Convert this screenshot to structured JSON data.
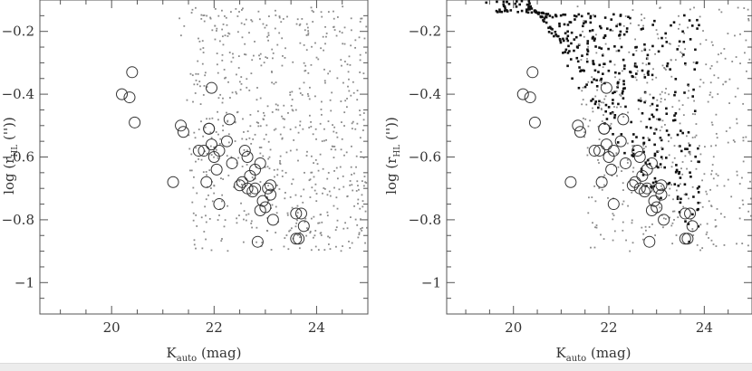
{
  "chart_data": [
    {
      "type": "scatter",
      "title": "",
      "xlabel": "K",
      "xlabel_sub": "auto",
      "xlabel_unit": " (mag)",
      "ylabel": "log (r",
      "ylabel_sub": "HL",
      "ylabel_unit": " ('')) ",
      "xlim": [
        18.6,
        25.0
      ],
      "ylim": [
        -1.1,
        -0.1
      ],
      "xticks": [
        20,
        22,
        24
      ],
      "xticklabels": [
        "20",
        "22",
        "24"
      ],
      "yticks": [
        -0.2,
        -0.4,
        -0.6,
        -0.8,
        -1.0
      ],
      "yticklabels": [
        "−0.2",
        "−0.4",
        "−0.6",
        "−0.8",
        "−1"
      ],
      "grid": false,
      "series": [
        {
          "marker": "open-circle",
          "color": "#333333",
          "x": [
            20.4,
            20.2,
            20.35,
            20.45,
            21.2,
            21.35,
            21.4,
            21.95,
            21.8,
            21.9,
            21.95,
            22.05,
            22.25,
            22.3,
            21.7,
            21.85,
            22.0,
            22.1,
            22.35,
            22.5,
            22.6,
            22.65,
            22.7,
            22.75,
            22.8,
            22.9,
            22.95,
            22.55,
            22.65,
            22.8,
            22.9,
            23.05,
            23.1,
            23.15,
            23.1,
            23.6,
            23.7,
            23.65,
            23.75,
            23.6,
            22.85,
            21.9,
            22.1,
            23.0
          ],
          "y": [
            -0.33,
            -0.4,
            -0.41,
            -0.49,
            -0.68,
            -0.5,
            -0.52,
            -0.38,
            -0.58,
            -0.51,
            -0.56,
            -0.64,
            -0.55,
            -0.48,
            -0.58,
            -0.68,
            -0.6,
            -0.75,
            -0.62,
            -0.69,
            -0.58,
            -0.6,
            -0.66,
            -0.71,
            -0.64,
            -0.62,
            -0.74,
            -0.68,
            -0.7,
            -0.7,
            -0.77,
            -0.7,
            -0.72,
            -0.8,
            -0.69,
            -0.78,
            -0.78,
            -0.86,
            -0.82,
            -0.86,
            -0.87,
            -0.51,
            -0.58,
            -0.76
          ]
        },
        {
          "marker": "small-dot",
          "color": "#8a8a8a",
          "x_range": [
            21.3,
            25.0
          ],
          "y_range": [
            -0.9,
            -0.12
          ],
          "count": 700
        }
      ]
    },
    {
      "type": "scatter",
      "title": "",
      "xlabel": "K",
      "xlabel_sub": "auto",
      "xlabel_unit": " (mag)",
      "ylabel": "log (r",
      "ylabel_sub": "HL",
      "ylabel_unit": " ('')) ",
      "xlim": [
        18.6,
        25.0
      ],
      "ylim": [
        -1.1,
        -0.1
      ],
      "xticks": [
        20,
        22,
        24
      ],
      "xticklabels": [
        "20",
        "22",
        "24"
      ],
      "yticks": [
        -0.2,
        -0.4,
        -0.6,
        -0.8,
        -1.0
      ],
      "yticklabels": [
        "−0.2",
        "−0.4",
        "−0.6",
        "−0.8",
        "−1"
      ],
      "grid": false,
      "series": [
        {
          "marker": "open-circle",
          "color": "#333333",
          "x": [
            20.4,
            20.2,
            20.35,
            20.45,
            21.2,
            21.35,
            21.4,
            21.95,
            21.8,
            21.9,
            21.95,
            22.05,
            22.25,
            22.3,
            21.7,
            21.85,
            22.0,
            22.1,
            22.35,
            22.5,
            22.6,
            22.65,
            22.7,
            22.75,
            22.8,
            22.9,
            22.95,
            22.55,
            22.65,
            22.8,
            22.9,
            23.05,
            23.1,
            23.15,
            23.1,
            23.6,
            23.7,
            23.65,
            23.75,
            23.6,
            22.85,
            21.9,
            22.1,
            23.0
          ],
          "y": [
            -0.33,
            -0.4,
            -0.41,
            -0.49,
            -0.68,
            -0.5,
            -0.52,
            -0.38,
            -0.58,
            -0.51,
            -0.56,
            -0.64,
            -0.55,
            -0.48,
            -0.58,
            -0.68,
            -0.6,
            -0.75,
            -0.62,
            -0.69,
            -0.58,
            -0.6,
            -0.66,
            -0.71,
            -0.64,
            -0.62,
            -0.74,
            -0.68,
            -0.7,
            -0.7,
            -0.77,
            -0.7,
            -0.72,
            -0.8,
            -0.69,
            -0.78,
            -0.78,
            -0.86,
            -0.82,
            -0.86,
            -0.87,
            -0.51,
            -0.58,
            -0.76
          ]
        },
        {
          "marker": "filled-square",
          "color": "#111111",
          "x_range": [
            19.3,
            23.9
          ],
          "y_range": [
            -0.88,
            -0.14
          ],
          "count": 520
        },
        {
          "marker": "small-dot",
          "color": "#8a8a8a",
          "x_range": [
            21.3,
            25.0
          ],
          "y_range": [
            -0.9,
            -0.12
          ],
          "count": 420
        }
      ]
    }
  ]
}
